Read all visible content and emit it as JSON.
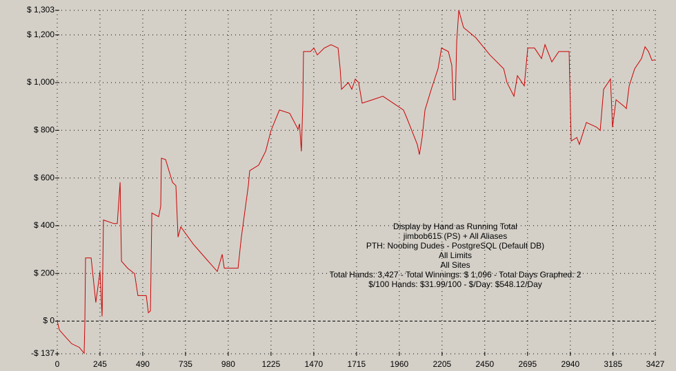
{
  "chart_data": {
    "type": "line",
    "annotations": [
      "Display by Hand as Running Total",
      "jimbob615 (PS) + All Aliases",
      "PTH: Noobing Dudes - PostgreSQL (Default DB)",
      "All Limits",
      "All Sites",
      "Total Hands: 3,427 - Total Winnings: $ 1,096 - Total Days Graphed: 2",
      "$/100 Hands: $31.99/100 - $/Day: $548.12/Day"
    ],
    "x": [
      0,
      12,
      47,
      83,
      126,
      154,
      158,
      162,
      194,
      221,
      245,
      257,
      265,
      324,
      344,
      360,
      368,
      403,
      443,
      462,
      510,
      522,
      534,
      542,
      581,
      593,
      597,
      621,
      660,
      680,
      692,
      708,
      779,
      858,
      917,
      945,
      957,
      1036,
      1055,
      1095,
      1103,
      1154,
      1194,
      1225,
      1273,
      1332,
      1380,
      1388,
      1399,
      1407,
      1411,
      1451,
      1471,
      1490,
      1530,
      1569,
      1609,
      1621,
      1629,
      1668,
      1688,
      1708,
      1727,
      1747,
      1807,
      1866,
      1925,
      1984,
      2004,
      2024,
      2063,
      2075,
      2091,
      2107,
      2143,
      2182,
      2202,
      2241,
      2261,
      2269,
      2281,
      2289,
      2301,
      2328,
      2399,
      2479,
      2558,
      2577,
      2617,
      2637,
      2676,
      2696,
      2735,
      2775,
      2795,
      2834,
      2874,
      2933,
      2937,
      2945,
      2977,
      2992,
      3032,
      3091,
      3111,
      3131,
      3170,
      3182,
      3202,
      3249,
      3261,
      3277,
      3309,
      3348,
      3368,
      3388,
      3408,
      3427
    ],
    "values": [
      0,
      -37,
      -66,
      -95,
      -110,
      -135,
      -9,
      265,
      265,
      78,
      208,
      20,
      424,
      409,
      409,
      582,
      251,
      222,
      199,
      107,
      107,
      35,
      43,
      453,
      438,
      481,
      683,
      677,
      582,
      568,
      352,
      395,
      323,
      257,
      208,
      280,
      222,
      222,
      352,
      568,
      631,
      654,
      712,
      799,
      885,
      871,
      804,
      827,
      712,
      914,
      1130,
      1130,
      1145,
      1116,
      1145,
      1159,
      1145,
      1058,
      972,
      1000,
      972,
      1015,
      1000,
      914,
      928,
      943,
      914,
      885,
      850,
      813,
      741,
      698,
      770,
      885,
      972,
      1058,
      1145,
      1130,
      1072,
      928,
      928,
      1173,
      1303,
      1231,
      1188,
      1116,
      1058,
      1000,
      943,
      1029,
      986,
      1145,
      1145,
      1101,
      1159,
      1087,
      1130,
      1130,
      1006,
      755,
      770,
      741,
      833,
      813,
      799,
      972,
      1015,
      813,
      928,
      900,
      891,
      986,
      1058,
      1101,
      1150,
      1130,
      1093,
      1096
    ],
    "color": "#cc0000",
    "xlim": [
      0,
      3427
    ],
    "xticks": [
      0,
      245,
      490,
      735,
      980,
      1225,
      1470,
      1715,
      1960,
      2205,
      2450,
      2695,
      2940,
      3185,
      3427
    ],
    "ylim": [
      -137,
      1303
    ],
    "yticks": [
      {
        "value": -137,
        "label": "-$ 137"
      },
      {
        "value": 0,
        "label": "$ 0"
      },
      {
        "value": 200,
        "label": "$ 200"
      },
      {
        "value": 400,
        "label": "$ 400"
      },
      {
        "value": 600,
        "label": "$ 600"
      },
      {
        "value": 800,
        "label": "$ 800"
      },
      {
        "value": 1000,
        "label": "$ 1,000"
      },
      {
        "value": 1200,
        "label": "$ 1,200"
      },
      {
        "value": 1303,
        "label": "$ 1,303"
      }
    ],
    "grid": true
  }
}
